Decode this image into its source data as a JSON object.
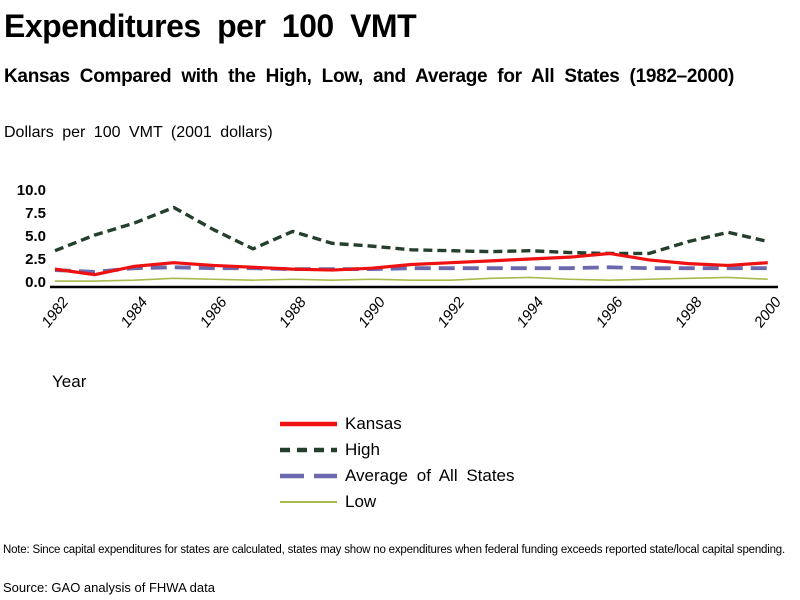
{
  "title": "Expenditures per 100 VMT",
  "subtitle": "Kansas Compared with the High, Low, and Average for All States (1982–2000)",
  "axis_title": "Dollars per 100 VMT (2001 dollars)",
  "x_axis_label": "Year",
  "note": "Note: Since capital expenditures for states are calculated, states may show no expenditures when federal funding exceeds reported state/local capital spending.",
  "source": "Source: GAO analysis of FHWA data",
  "colors": {
    "kansas": "#ee1111",
    "high": "#24402c",
    "average": "#6b68ad",
    "low": "#aab94e",
    "axis": "#000000",
    "background": "#ffffff"
  },
  "chart_data": {
    "type": "line",
    "title": "Expenditures per 100 VMT",
    "subtitle": "Kansas Compared with the High, Low, and Average for All States (1982–2000)",
    "xlabel": "Year",
    "ylabel": "Dollars per 100 VMT (2001 dollars)",
    "ylim": [
      0,
      10
    ],
    "grid": false,
    "legend_position": "bottom-center",
    "x": [
      1982,
      1983,
      1984,
      1985,
      1986,
      1987,
      1988,
      1989,
      1990,
      1991,
      1992,
      1993,
      1994,
      1995,
      1996,
      1997,
      1998,
      1999,
      2000
    ],
    "x_tick_labels": [
      "1982",
      "1984",
      "1986",
      "1988",
      "1990",
      "1992",
      "1994",
      "1996",
      "1998",
      "2000"
    ],
    "y_ticks": [
      0,
      2.5,
      5,
      7.5,
      10
    ],
    "y_tick_labels": [
      "0.0",
      "2.5",
      "5.0",
      "7.5",
      "10.0"
    ],
    "series": [
      {
        "name": "Kansas",
        "color": "#ee1111",
        "style": "solid",
        "values": [
          1.4,
          0.8,
          1.7,
          2.1,
          1.8,
          1.6,
          1.4,
          1.3,
          1.5,
          1.9,
          2.1,
          2.3,
          2.5,
          2.7,
          3.1,
          2.4,
          2.0,
          1.8,
          2.1
        ]
      },
      {
        "name": "High",
        "color": "#24402c",
        "style": "dashed",
        "values": [
          3.4,
          5.1,
          6.4,
          8.1,
          5.7,
          3.6,
          5.5,
          4.2,
          3.9,
          3.5,
          3.4,
          3.3,
          3.4,
          3.2,
          3.1,
          3.1,
          4.4,
          5.4,
          4.4
        ]
      },
      {
        "name": "Average of All States",
        "color": "#6b68ad",
        "style": "long-dash",
        "values": [
          1.3,
          1.1,
          1.5,
          1.6,
          1.5,
          1.5,
          1.4,
          1.4,
          1.4,
          1.5,
          1.5,
          1.5,
          1.5,
          1.5,
          1.6,
          1.5,
          1.5,
          1.5,
          1.5
        ]
      },
      {
        "name": "Low",
        "color": "#aab94e",
        "style": "solid-thin",
        "values": [
          0.1,
          0.1,
          0.2,
          0.4,
          0.3,
          0.2,
          0.3,
          0.2,
          0.3,
          0.2,
          0.2,
          0.4,
          0.5,
          0.3,
          0.2,
          0.3,
          0.4,
          0.5,
          0.3
        ]
      }
    ]
  }
}
